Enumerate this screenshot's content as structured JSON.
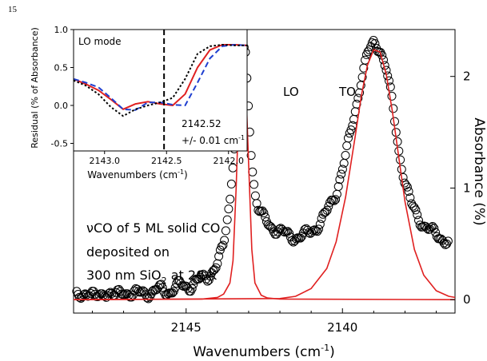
{
  "page": {
    "number": "15"
  },
  "chart_data": [
    {
      "type": "scatter",
      "role": "main",
      "xlabel_main": "Wavenumbers (cm",
      "xlabel_sup": "-1",
      "xlabel_end": ")",
      "ylabel": "Absorbance (%)",
      "xlim": [
        2148.6,
        2136.4
      ],
      "ylim": [
        -0.12,
        2.42
      ],
      "x_reversed": true,
      "grid": false,
      "xticks": [
        2145,
        2140
      ],
      "xtick_labels": [
        "2145",
        "2140"
      ],
      "yticks": [
        0,
        1,
        2
      ],
      "ytick_labels": [
        "0",
        "1",
        "2"
      ],
      "yaxis_side": "right",
      "annotations": [
        "LO",
        "TO"
      ],
      "note_lines": [
        {
          "main": "νCO of 5 ML solid CO"
        },
        {
          "main": "deposited on"
        },
        {
          "main": "300 nm SiO",
          "sub": "2",
          "tail": " at 20 K"
        }
      ],
      "series": [
        {
          "marker": "open-circle",
          "color": "#000000",
          "x": [
            2148.5,
            2148.2,
            2147.9,
            2147.6,
            2147.3,
            2147.0,
            2146.7,
            2146.4,
            2146.1,
            2145.8,
            2145.5,
            2145.2,
            2144.9,
            2144.6,
            2144.3,
            2144.0,
            2143.8,
            2143.6,
            2143.4,
            2143.3,
            2143.2,
            2143.1,
            2143.0,
            2142.9,
            2142.8,
            2142.7,
            2142.6,
            2142.5,
            2142.3,
            2142.0,
            2141.7,
            2141.4,
            2141.1,
            2140.8,
            2140.5,
            2140.2,
            2139.9,
            2139.6,
            2139.4,
            2139.2,
            2139.0,
            2138.8,
            2138.6,
            2138.4,
            2138.2,
            2138.0,
            2137.8,
            2137.6,
            2137.4,
            2137.2,
            2137.0,
            2136.8,
            2136.6
          ],
          "y": [
            0.04,
            0.07,
            0.01,
            0.08,
            0.02,
            0.09,
            0.03,
            0.08,
            0.05,
            0.1,
            0.07,
            0.13,
            0.12,
            0.17,
            0.21,
            0.32,
            0.48,
            0.9,
            1.6,
            2.1,
            2.29,
            2.18,
            1.7,
            1.25,
            0.96,
            0.82,
            0.76,
            0.72,
            0.66,
            0.61,
            0.57,
            0.56,
            0.59,
            0.66,
            0.78,
            0.96,
            1.28,
            1.68,
            1.98,
            2.19,
            2.3,
            2.26,
            2.06,
            1.75,
            1.35,
            1.05,
            0.85,
            0.75,
            0.67,
            0.62,
            0.58,
            0.55,
            0.52
          ]
        },
        {
          "name": "LO",
          "line": true,
          "color": "#e02020",
          "x": [
            2148.6,
            2144.5,
            2144.0,
            2143.8,
            2143.6,
            2143.5,
            2143.4,
            2143.3,
            2143.2,
            2143.1,
            2143.0,
            2142.9,
            2142.8,
            2142.6,
            2142.4,
            2142.0,
            2136.4
          ],
          "y": [
            0,
            0.005,
            0.02,
            0.05,
            0.15,
            0.35,
            1.0,
            1.85,
            2.28,
            2.0,
            1.2,
            0.45,
            0.15,
            0.04,
            0.015,
            0.005,
            0
          ]
        },
        {
          "name": "TO",
          "line": true,
          "color": "#e02020",
          "x": [
            2148.6,
            2142.0,
            2141.5,
            2141.0,
            2140.5,
            2140.2,
            2139.9,
            2139.6,
            2139.4,
            2139.2,
            2139.0,
            2138.8,
            2138.6,
            2138.4,
            2138.2,
            2138.0,
            2137.7,
            2137.4,
            2137.0,
            2136.6,
            2136.4
          ],
          "y": [
            0,
            0.01,
            0.03,
            0.1,
            0.28,
            0.52,
            0.92,
            1.45,
            1.82,
            2.1,
            2.24,
            2.22,
            2.02,
            1.68,
            1.28,
            0.88,
            0.45,
            0.22,
            0.08,
            0.03,
            0.02
          ]
        }
      ]
    },
    {
      "type": "line",
      "role": "inset",
      "title": "LO mode",
      "xlabel_main": "Wavenumbers (cm",
      "xlabel_sup": "-1",
      "xlabel_end": ")",
      "ylabel": "Residual (% of Absorbance)",
      "xlim": [
        2143.25,
        2141.85
      ],
      "ylim": [
        -0.6,
        1.0
      ],
      "x_reversed": true,
      "xticks": [
        2143.0,
        2142.5,
        2142.0
      ],
      "xtick_labels": [
        "2143.0",
        "2142.5",
        "2142.0"
      ],
      "yticks": [
        -0.5,
        0.0,
        0.5,
        1.0
      ],
      "ytick_labels": [
        "-0.5",
        "0.0",
        "0.5",
        "1.0"
      ],
      "vline": 2142.52,
      "annotation_value": "2142.52",
      "annotation_unc": "+/- 0.01 cm",
      "annotation_sup": "-1",
      "series": [
        {
          "color": "#e02020",
          "dash": "solid",
          "x": [
            2143.25,
            2143.15,
            2143.05,
            2142.95,
            2142.85,
            2142.75,
            2142.65,
            2142.55,
            2142.45,
            2142.35,
            2142.25,
            2142.15,
            2142.05,
            2141.95,
            2141.85
          ],
          "y": [
            0.35,
            0.28,
            0.2,
            0.08,
            -0.05,
            0.02,
            0.05,
            0.02,
            0.0,
            0.15,
            0.5,
            0.73,
            0.8,
            0.8,
            0.79
          ]
        },
        {
          "color": "#1f3fd0",
          "dash": "dashed",
          "x": [
            2143.25,
            2143.15,
            2143.05,
            2142.95,
            2142.85,
            2142.75,
            2142.65,
            2142.55,
            2142.45,
            2142.35,
            2142.25,
            2142.15,
            2142.05,
            2141.95,
            2141.85
          ],
          "y": [
            0.35,
            0.3,
            0.24,
            0.1,
            -0.05,
            -0.06,
            0.04,
            0.04,
            0.01,
            0.0,
            0.3,
            0.62,
            0.78,
            0.8,
            0.79
          ]
        },
        {
          "color": "#000000",
          "dash": "dotted",
          "x": [
            2143.25,
            2143.15,
            2143.05,
            2142.95,
            2142.85,
            2142.75,
            2142.65,
            2142.55,
            2142.45,
            2142.35,
            2142.25,
            2142.15,
            2142.05,
            2141.95,
            2141.85
          ],
          "y": [
            0.33,
            0.26,
            0.15,
            -0.02,
            -0.14,
            -0.05,
            0.0,
            0.04,
            0.1,
            0.35,
            0.68,
            0.78,
            0.8,
            0.79,
            0.79
          ]
        }
      ]
    }
  ]
}
